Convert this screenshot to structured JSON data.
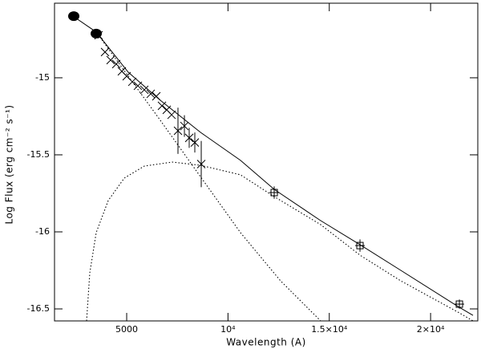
{
  "chart_data": {
    "type": "scatter",
    "xlabel": "Wavelength (A)",
    "ylabel": "Log Flux (erg cm⁻² s⁻¹)",
    "xlim": [
      1438,
      22330
    ],
    "ylim": [
      -16.578,
      -14.516
    ],
    "xticks": [
      5000,
      {
        "value": 10000,
        "label": "10⁴"
      },
      {
        "value": 15000,
        "label": "1.5×10⁴"
      },
      {
        "value": 20000,
        "label": "2×10⁴"
      }
    ],
    "yticks": [
      -15,
      -15.5,
      -16,
      -16.5
    ],
    "color": "#000000",
    "series": [
      {
        "marker": "filled-circle",
        "x": [
          2388,
          3496
        ],
        "values": [
          -14.6,
          -14.713
        ]
      },
      {
        "marker": "cross",
        "x": [
          3614,
          3931,
          4208,
          4485,
          4762,
          5000,
          5277,
          5554,
          5870,
          6187,
          6464,
          6741,
          6978,
          7216,
          7532,
          7849,
          8086,
          8363,
          8680
        ],
        "values": [
          -14.724,
          -14.833,
          -14.885,
          -14.911,
          -14.958,
          -14.99,
          -15.026,
          -15.052,
          -15.078,
          -15.104,
          -15.12,
          -15.182,
          -15.208,
          -15.24,
          -15.344,
          -15.313,
          -15.39,
          -15.42,
          -15.56
        ],
        "errors": [
          0.02,
          null,
          null,
          null,
          null,
          null,
          null,
          null,
          null,
          null,
          null,
          null,
          null,
          null,
          0.15,
          0.07,
          0.065,
          0.065,
          0.15
        ]
      },
      {
        "marker": "square",
        "x": [
          12281,
          16515,
          21422
        ],
        "values": [
          -15.745,
          -16.089,
          -16.469
        ],
        "errors": [
          0.04,
          0.04,
          0.03
        ]
      }
    ],
    "lines": [
      {
        "style": "solid",
        "x": [
          2229,
          3496,
          5078,
          6661,
          8640,
          10618,
          12280,
          14575,
          16514,
          18532,
          21421,
          22094
        ],
        "values": [
          -14.589,
          -14.703,
          -14.964,
          -15.146,
          -15.354,
          -15.536,
          -15.724,
          -15.927,
          -16.083,
          -16.25,
          -16.49,
          -16.542
        ]
      },
      {
        "style": "dotted",
        "x": [
          3496,
          5078,
          6661,
          8640,
          10618,
          12597,
          14575
        ],
        "values": [
          -14.703,
          -14.99,
          -15.276,
          -15.641,
          -16.005,
          -16.318,
          -16.578
        ]
      },
      {
        "style": "dotted",
        "x": [
          3021,
          3179,
          3496,
          4089,
          4881,
          5870,
          7255,
          8640,
          10618,
          12280,
          14575,
          16514,
          18532,
          21421,
          22094
        ],
        "values": [
          -16.578,
          -16.266,
          -16.005,
          -15.797,
          -15.651,
          -15.573,
          -15.547,
          -15.568,
          -15.63,
          -15.771,
          -15.953,
          -16.151,
          -16.318,
          -16.526,
          -16.578
        ]
      }
    ]
  }
}
